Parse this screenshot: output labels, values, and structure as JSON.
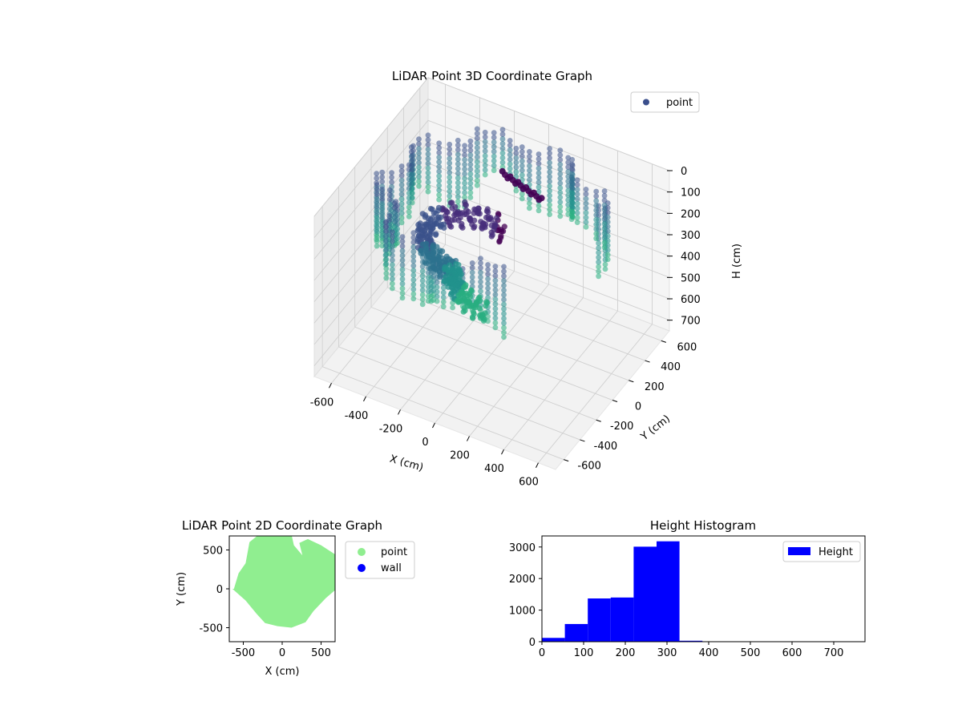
{
  "chart_data": [
    {
      "type": "scatter",
      "title": "LiDAR Point 3D Coordinate Graph",
      "xlabel": "X (cm)",
      "ylabel": "Y (cm)",
      "zlabel": "H (cm)",
      "xlim": [
        -700,
        700
      ],
      "ylim": [
        -700,
        700
      ],
      "zlim": [
        0,
        750
      ],
      "z_inverted": true,
      "x_ticks": [
        -600,
        -400,
        -200,
        0,
        200,
        400,
        600
      ],
      "y_ticks": [
        -600,
        -400,
        -200,
        0,
        200,
        400,
        600
      ],
      "z_ticks": [
        0,
        100,
        200,
        300,
        400,
        500,
        600,
        700
      ],
      "grid": true,
      "legend_position": "top-right",
      "series": [
        {
          "name": "point",
          "color": "#3b4f8c",
          "colormap": "viridis"
        }
      ]
    },
    {
      "type": "scatter",
      "title": "LiDAR Point 2D Coordinate Graph",
      "xlabel": "X (cm)",
      "ylabel": "Y (cm)",
      "xlim": [
        -680,
        680
      ],
      "ylim": [
        -680,
        680
      ],
      "x_ticks": [
        -500,
        0,
        500
      ],
      "y_ticks": [
        -500,
        0,
        500
      ],
      "legend_position": "outside-right",
      "series": [
        {
          "name": "point",
          "color": "#90ee90"
        },
        {
          "name": "wall",
          "color": "#0000ff"
        }
      ]
    },
    {
      "type": "bar",
      "title": "Height Histogram",
      "xlabel": "",
      "ylabel": "",
      "xlim": [
        0,
        775
      ],
      "ylim": [
        0,
        3350
      ],
      "x_ticks": [
        0,
        100,
        200,
        300,
        400,
        500,
        600,
        700
      ],
      "y_ticks": [
        0,
        1000,
        2000,
        3000
      ],
      "bin_width": 55,
      "bins": [
        0,
        55,
        110,
        165,
        220,
        275,
        330,
        385,
        440,
        495,
        550,
        605,
        660,
        715
      ],
      "values": [
        120,
        560,
        1370,
        1400,
        3010,
        3180,
        30,
        5,
        3,
        2,
        2,
        1,
        1,
        1
      ],
      "legend_position": "top-right",
      "series": [
        {
          "name": "Height",
          "color": "#0000ff"
        }
      ]
    }
  ]
}
